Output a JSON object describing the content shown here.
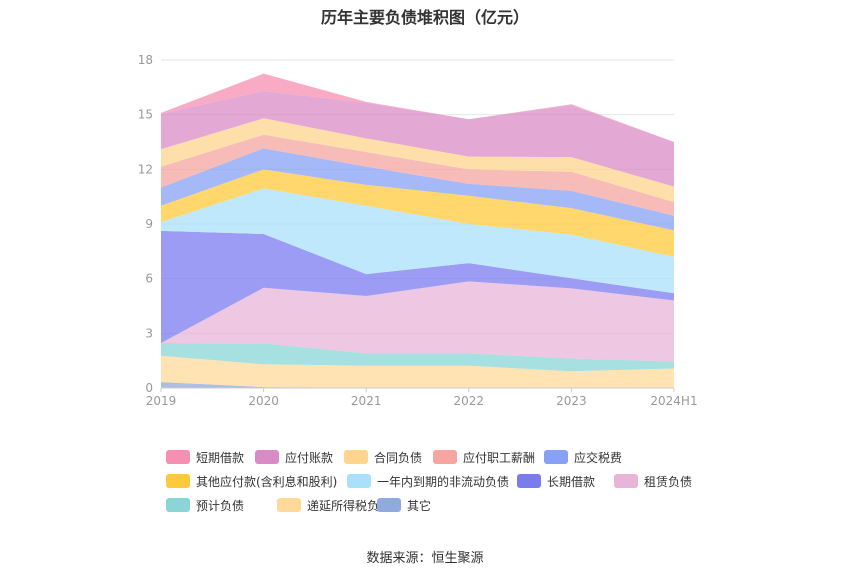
{
  "chart_data": {
    "type": "area",
    "stacked": true,
    "title": "历年主要负债堆积图（亿元）",
    "xlabel": "",
    "ylabel": "",
    "ylim": [
      0,
      18
    ],
    "yticks": [
      "0",
      "3",
      "6",
      "9",
      "12",
      "15",
      "18"
    ],
    "categories": [
      "2019",
      "2020",
      "2021",
      "2022",
      "2023",
      "2024H1"
    ],
    "grid": true,
    "legend_position": "bottom",
    "series": [
      {
        "name": "其它",
        "color": "#8faadc",
        "values": [
          0.32,
          0.05,
          0.02,
          0.02,
          0.02,
          0.02
        ]
      },
      {
        "name": "递延所得税负债",
        "color": "#ffd99a",
        "values": [
          1.45,
          1.25,
          1.2,
          1.2,
          0.9,
          1.05
        ]
      },
      {
        "name": "预计负债",
        "color": "#8ad6d6",
        "values": [
          0.7,
          1.15,
          0.68,
          0.68,
          0.7,
          0.38
        ]
      },
      {
        "name": "租赁负债",
        "color": "#e8b4d8",
        "values": [
          0.0,
          3.05,
          3.15,
          3.95,
          3.85,
          3.35
        ]
      },
      {
        "name": "长期借款",
        "color": "#7b7bf0",
        "values": [
          6.15,
          2.95,
          1.2,
          1.0,
          0.55,
          0.4
        ]
      },
      {
        "name": "一年内到期的非流动负债",
        "color": "#a9e0fb",
        "values": [
          0.48,
          2.5,
          3.75,
          2.15,
          2.4,
          2.0
        ]
      },
      {
        "name": "其他应付款(含利息和股利)",
        "color": "#ffc93c",
        "values": [
          0.9,
          1.05,
          1.15,
          1.55,
          1.45,
          1.45
        ]
      },
      {
        "name": "应交税费",
        "color": "#87a2f5",
        "values": [
          1.0,
          1.15,
          1.0,
          0.65,
          0.95,
          0.8
        ]
      },
      {
        "name": "应付职工薪酬",
        "color": "#f6a5a0",
        "values": [
          1.15,
          0.75,
          0.8,
          0.8,
          1.05,
          0.75
        ]
      },
      {
        "name": "合同负债",
        "color": "#ffd48c",
        "values": [
          0.95,
          0.9,
          0.75,
          0.7,
          0.8,
          0.85
        ]
      },
      {
        "name": "应付账款",
        "color": "#d98bc6",
        "values": [
          1.95,
          1.5,
          1.95,
          2.05,
          2.85,
          2.45
        ]
      },
      {
        "name": "短期借款",
        "color": "#f78fb3",
        "values": [
          0.05,
          0.95,
          0.05,
          0.0,
          0.05,
          0.0
        ]
      }
    ],
    "legend_order": [
      "短期借款",
      "应付账款",
      "合同负债",
      "应付职工薪酬",
      "应交税费",
      "其他应付款(含利息和股利)",
      "一年内到期的非流动负债",
      "长期借款",
      "租赁负债",
      "预计负债",
      "递延所得税负债",
      "其它"
    ]
  },
  "source": "数据来源：恒生聚源"
}
